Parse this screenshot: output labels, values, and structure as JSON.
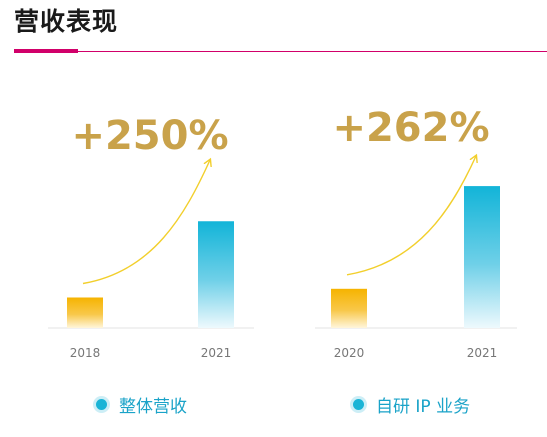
{
  "title": "营收表现",
  "colors": {
    "accent_line": "#d1006a",
    "bar_start": "#f6b300",
    "bar_end": "#12b4d8",
    "growth_text": "#c9a24a",
    "arrow": "#f2cf2c"
  },
  "chart_data": [
    {
      "type": "bar",
      "categories": [
        "2018",
        "2021"
      ],
      "values": [
        1,
        3.5
      ],
      "growth_label": "+250%",
      "legend": "整体营收",
      "grid": false,
      "y_axis_shown": false
    },
    {
      "type": "bar",
      "categories": [
        "2020",
        "2021"
      ],
      "values": [
        1,
        3.62
      ],
      "growth_label": "+262%",
      "legend": "自研 IP 业务",
      "grid": false,
      "y_axis_shown": false
    }
  ]
}
